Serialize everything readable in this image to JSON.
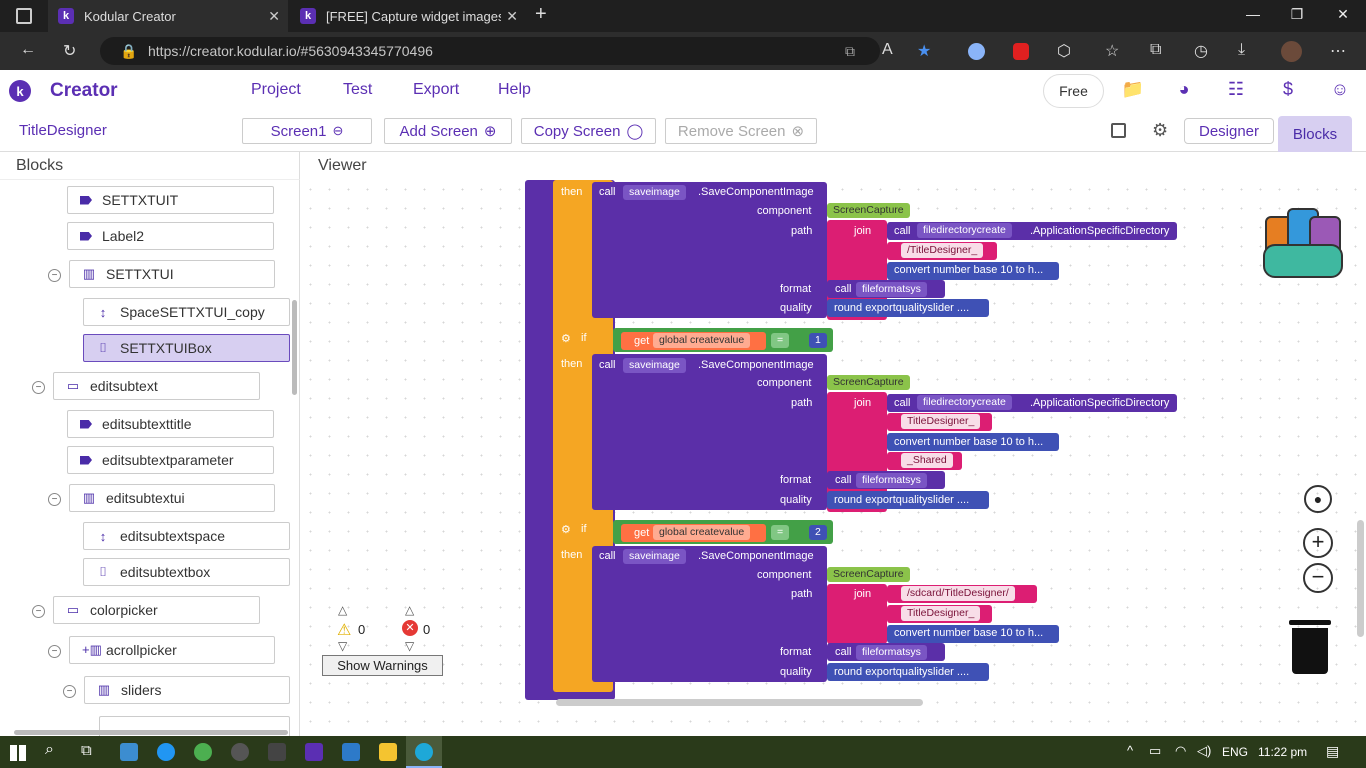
{
  "browser": {
    "tabs": [
      {
        "title": "Kodular Creator"
      },
      {
        "title": "[FREE] Capture widget images - E"
      }
    ],
    "url": "https://creator.kodular.io/#5630943345770496"
  },
  "app": {
    "name": "Creator",
    "menu": [
      "Project",
      "Test",
      "Export",
      "Help"
    ],
    "plan_label": "Free"
  },
  "toolbar": {
    "project_name": "TitleDesigner",
    "screen_select": "Screen1",
    "add_screen": "Add Screen",
    "copy_screen": "Copy Screen",
    "remove_screen": "Remove Screen",
    "designer": "Designer",
    "blocks": "Blocks"
  },
  "panels": {
    "blocks_title": "Blocks",
    "viewer_title": "Viewer"
  },
  "tree": [
    {
      "label": "SETTXTUIT",
      "icon": "tag-icon"
    },
    {
      "label": "Label2",
      "icon": "tag-icon"
    },
    {
      "label": "SETTXTUI",
      "icon": "vertical-arrangement-icon"
    },
    {
      "label": "SpaceSETTXTUI_copy",
      "icon": "space-icon"
    },
    {
      "label": "SETTXTUIBox",
      "icon": "textbox-icon",
      "selected": true
    },
    {
      "label": "editsubtext",
      "icon": "screen-icon"
    },
    {
      "label": "editsubtexttitle",
      "icon": "tag-icon"
    },
    {
      "label": "editsubtextparameter",
      "icon": "tag-icon"
    },
    {
      "label": "editsubtextui",
      "icon": "vertical-arrangement-icon"
    },
    {
      "label": "editsubtextspace",
      "icon": "space-icon"
    },
    {
      "label": "editsubtextbox",
      "icon": "textbox-icon"
    },
    {
      "label": "colorpicker",
      "icon": "screen-icon"
    },
    {
      "label": "acrollpicker",
      "icon": "add-arrangement-icon"
    },
    {
      "label": "sliders",
      "icon": "vertical-arrangement-icon"
    }
  ],
  "blocks": {
    "kw_then": "then",
    "kw_if": "if",
    "kw_call": "call",
    "kw_join": "join",
    "kw_get": "get",
    "component_obj": "saveimage",
    "method": ".SaveComponentImage",
    "param_component": "component",
    "param_path": "path",
    "param_format": "format",
    "param_quality": "quality",
    "screen_capture": "ScreenCapture",
    "dir_obj": "filedirectorycreate",
    "dir_method": ".ApplicationSpecificDirectory",
    "convert": "convert number base 10 to h...",
    "fmt_obj": "fileformatsys",
    "quality_val": "round exportqualityslider ....",
    "global_var": "global createvalue",
    "eq": "=",
    "cmp1": "1",
    "cmp2": "2",
    "s_titledesigner_slash": "/TitleDesigner_",
    "s_titledesigner": "TitleDesigner_",
    "s_shared": "_Shared",
    "s_sdcard": "/sdcard/TitleDesigner/"
  },
  "workspace": {
    "warnings_count": "0",
    "errors_count": "0",
    "show_warnings": "Show Warnings"
  },
  "taskbar": {
    "lang": "ENG",
    "time": "11:22 pm"
  }
}
